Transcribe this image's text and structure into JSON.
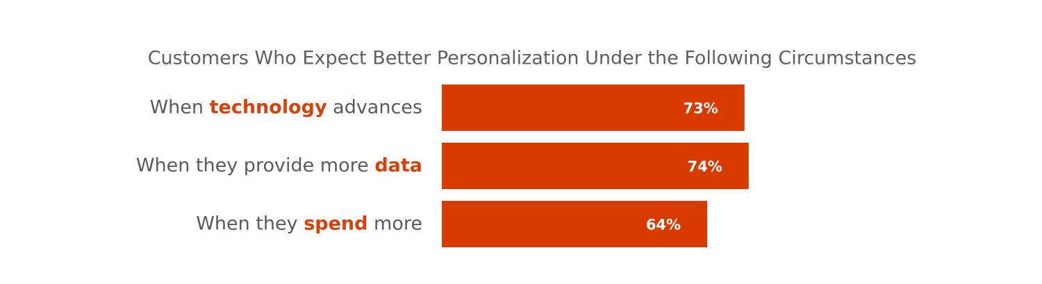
{
  "chart_data": {
    "type": "bar",
    "orientation": "horizontal",
    "title": "Customers Who Expect Better Personalization Under the Following Circumstances",
    "categories": [
      "When technology advances",
      "When they provide more data",
      "When they spend more"
    ],
    "highlights": [
      "technology",
      "data",
      "spend"
    ],
    "highlight_color": "#d9410a",
    "values": [
      73,
      74,
      64
    ],
    "value_labels": [
      "73%",
      "74%",
      "64%"
    ],
    "color": "#d93a00"
  }
}
